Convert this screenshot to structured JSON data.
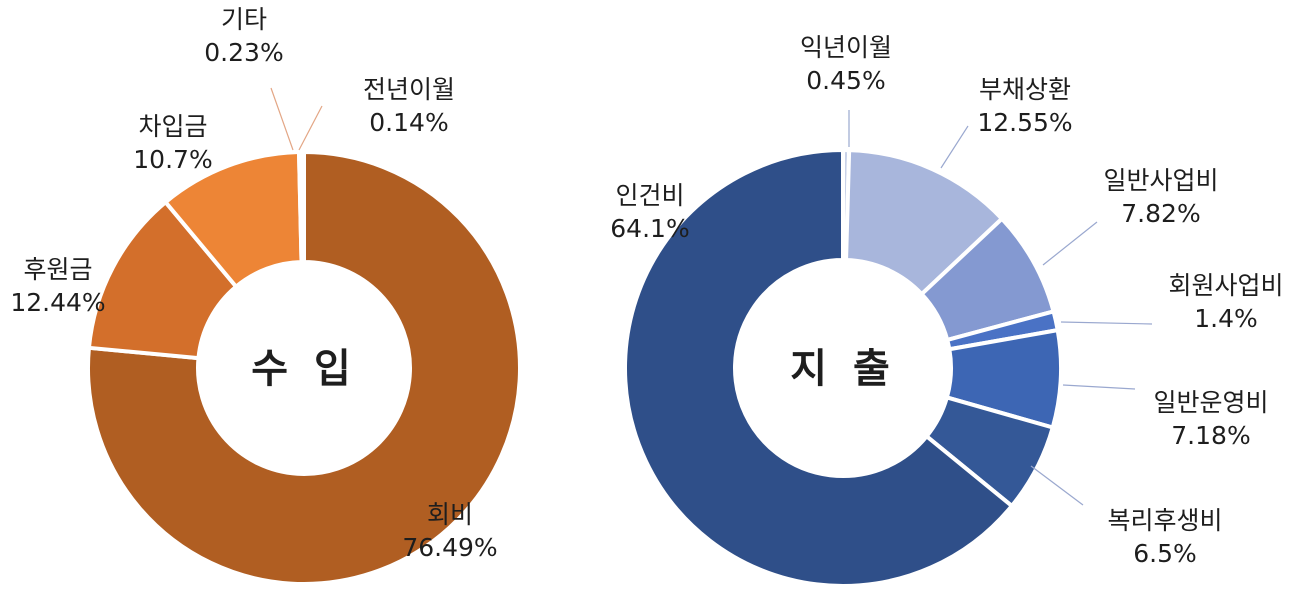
{
  "chart_data": [
    {
      "type": "pie",
      "title": "수 입",
      "categories": [
        "회비",
        "후원금",
        "차입금",
        "기타",
        "전년이월"
      ],
      "values": [
        76.49,
        12.44,
        10.7,
        0.23,
        0.14
      ],
      "value_labels": [
        "76.49%",
        "12.44%",
        "10.7%",
        "0.23%",
        "0.14%"
      ],
      "colors": [
        "#b05e22",
        "#d36f2b",
        "#ed8536",
        "#e9b69a",
        "#f3cdb9"
      ]
    },
    {
      "type": "pie",
      "title": "지 출",
      "categories": [
        "익년이월",
        "부채상환",
        "일반사업비",
        "회원사업비",
        "일반운영비",
        "복리후생비",
        "인건비"
      ],
      "values": [
        0.45,
        12.55,
        7.82,
        1.4,
        7.18,
        6.5,
        64.1
      ],
      "value_labels": [
        "0.45%",
        "12.55%",
        "7.82%",
        "1.4%",
        "7.18%",
        "6.5%",
        "64.1%"
      ],
      "colors": [
        "#c9d2e8",
        "#a8b6dc",
        "#8499d1",
        "#4a72c5",
        "#3d66b4",
        "#345897",
        "#2f4f89"
      ]
    }
  ]
}
